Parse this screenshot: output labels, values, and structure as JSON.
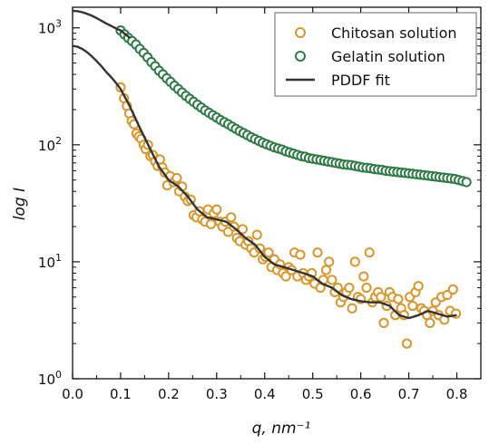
{
  "chart_data": {
    "type": "scatter",
    "xlabel": "q, nm⁻¹",
    "ylabel": "log I",
    "x_scale": "linear",
    "y_scale": "log",
    "xlim": [
      0.0,
      0.85
    ],
    "ylim": [
      1,
      1500
    ],
    "x_ticks": [
      "0.0",
      "0.1",
      "0.2",
      "0.3",
      "0.4",
      "0.5",
      "0.6",
      "0.7",
      "0.8"
    ],
    "y_ticks": [
      "10",
      "10",
      "10",
      "10"
    ],
    "y_tick_exponents": [
      "0",
      "1",
      "2",
      "3"
    ],
    "grid": false,
    "legend_position": "top-right",
    "series": [
      {
        "name": "Chitosan solution",
        "kind": "markers",
        "color": "#d9962b",
        "x": [
          0.1,
          0.107,
          0.113,
          0.118,
          0.123,
          0.128,
          0.133,
          0.138,
          0.143,
          0.148,
          0.152,
          0.157,
          0.162,
          0.167,
          0.172,
          0.177,
          0.182,
          0.187,
          0.192,
          0.197,
          0.203,
          0.21,
          0.217,
          0.222,
          0.228,
          0.234,
          0.24,
          0.246,
          0.252,
          0.258,
          0.264,
          0.27,
          0.276,
          0.282,
          0.288,
          0.294,
          0.3,
          0.306,
          0.312,
          0.318,
          0.324,
          0.33,
          0.336,
          0.342,
          0.348,
          0.354,
          0.36,
          0.366,
          0.372,
          0.378,
          0.384,
          0.39,
          0.396,
          0.402,
          0.408,
          0.414,
          0.42,
          0.426,
          0.432,
          0.438,
          0.444,
          0.45,
          0.456,
          0.462,
          0.468,
          0.474,
          0.48,
          0.486,
          0.492,
          0.498,
          0.504,
          0.51,
          0.516,
          0.522,
          0.528,
          0.534,
          0.54,
          0.546,
          0.552,
          0.558,
          0.564,
          0.57,
          0.576,
          0.582,
          0.588,
          0.594,
          0.6,
          0.606,
          0.612,
          0.618,
          0.624,
          0.63,
          0.636,
          0.642,
          0.648,
          0.654,
          0.66,
          0.666,
          0.672,
          0.678,
          0.684,
          0.69,
          0.696,
          0.702,
          0.708,
          0.714,
          0.72,
          0.726,
          0.732,
          0.738,
          0.744,
          0.75,
          0.756,
          0.762,
          0.768,
          0.774,
          0.78,
          0.786,
          0.792,
          0.798
        ],
        "y": [
          310,
          250,
          215,
          185,
          160,
          150,
          125,
          118,
          112,
          100,
          92,
          100,
          80,
          82,
          72,
          66,
          75,
          64,
          58,
          45,
          54,
          48,
          52,
          40,
          44,
          36,
          33,
          34,
          25,
          24,
          27,
          23,
          22,
          28,
          21,
          26,
          28,
          22,
          20,
          22,
          18,
          24,
          20,
          16,
          15,
          19,
          14,
          15,
          13,
          12,
          17,
          13,
          10.5,
          11,
          12,
          9,
          10.5,
          8.5,
          9.5,
          8,
          7.5,
          9,
          8.5,
          12,
          7.5,
          11.5,
          8,
          7,
          7.5,
          8,
          6.5,
          12,
          6,
          7,
          8.5,
          10,
          7,
          5.5,
          6,
          4.5,
          5,
          5.5,
          6,
          4,
          10,
          5,
          4.8,
          7.5,
          6,
          12,
          4.5,
          5,
          5.5,
          5,
          3,
          4.2,
          5.5,
          5,
          3.5,
          4.8,
          4,
          3.5,
          2,
          5,
          4.2,
          5.5,
          6.2,
          4,
          3.8,
          3.5,
          3,
          3.8,
          4.5,
          3.5,
          5,
          3.2,
          5.2,
          3.8,
          5.8,
          3.6
        ]
      },
      {
        "name": "Gelatin solution",
        "kind": "markers",
        "color": "#2f7a45",
        "x": [
          0.1,
          0.108,
          0.116,
          0.124,
          0.132,
          0.14,
          0.148,
          0.156,
          0.164,
          0.172,
          0.18,
          0.188,
          0.196,
          0.204,
          0.212,
          0.22,
          0.228,
          0.236,
          0.244,
          0.252,
          0.26,
          0.268,
          0.276,
          0.284,
          0.292,
          0.3,
          0.308,
          0.316,
          0.324,
          0.332,
          0.34,
          0.348,
          0.356,
          0.364,
          0.372,
          0.38,
          0.388,
          0.396,
          0.404,
          0.412,
          0.42,
          0.428,
          0.436,
          0.444,
          0.452,
          0.46,
          0.468,
          0.476,
          0.484,
          0.492,
          0.5,
          0.508,
          0.516,
          0.524,
          0.532,
          0.54,
          0.548,
          0.556,
          0.564,
          0.572,
          0.58,
          0.588,
          0.596,
          0.604,
          0.612,
          0.62,
          0.628,
          0.636,
          0.644,
          0.652,
          0.66,
          0.668,
          0.676,
          0.684,
          0.692,
          0.7,
          0.708,
          0.716,
          0.724,
          0.732,
          0.74,
          0.748,
          0.756,
          0.764,
          0.772,
          0.78,
          0.788,
          0.796,
          0.804,
          0.812,
          0.82
        ],
        "y": [
          950,
          880,
          820,
          770,
          720,
          660,
          610,
          560,
          510,
          470,
          430,
          400,
          370,
          345,
          320,
          300,
          280,
          262,
          247,
          233,
          220,
          208,
          197,
          188,
          179,
          171,
          163,
          156,
          150,
          143,
          137,
          131,
          126,
          121,
          116,
          112,
          108,
          104,
          101,
          98,
          95,
          93,
          91,
          88,
          86,
          84,
          82,
          80,
          79,
          77,
          76,
          75,
          74,
          73,
          72,
          71,
          70,
          69,
          68,
          67.5,
          67,
          66,
          65,
          64,
          63.5,
          63,
          62,
          61.5,
          61,
          60,
          59.5,
          59,
          58.5,
          58,
          57.5,
          57,
          56.5,
          56,
          55.5,
          55,
          54.5,
          54,
          53.5,
          53,
          52.5,
          52,
          51.5,
          51,
          50,
          49,
          48
        ]
      },
      {
        "name": "PDDF fit",
        "kind": "line",
        "color": "#333333",
        "segments": [
          {
            "x": [
              0.0,
              0.01,
              0.02,
              0.03,
              0.04,
              0.05,
              0.06,
              0.07,
              0.08,
              0.09,
              0.1,
              0.11,
              0.12
            ],
            "y": [
              1400,
              1390,
              1360,
              1320,
              1270,
              1210,
              1150,
              1090,
              1040,
              990,
              950,
              880,
              820
            ]
          },
          {
            "x": [
              0.0,
              0.01,
              0.02,
              0.03,
              0.04,
              0.05,
              0.06,
              0.07,
              0.08,
              0.09,
              0.1,
              0.12,
              0.14,
              0.16,
              0.18,
              0.2,
              0.22,
              0.24,
              0.26,
              0.28,
              0.3,
              0.32,
              0.34,
              0.36,
              0.38,
              0.4,
              0.42,
              0.44,
              0.46,
              0.48,
              0.5,
              0.52,
              0.54,
              0.56,
              0.58,
              0.6,
              0.62,
              0.64,
              0.66,
              0.68,
              0.7,
              0.72,
              0.74,
              0.76,
              0.78,
              0.8
            ],
            "y": [
              700,
              690,
              660,
              620,
              570,
              520,
              470,
              420,
              380,
              340,
              300,
              210,
              140,
              95,
              65,
              50,
              44,
              36,
              28,
              24,
              23,
              22,
              19,
              16,
              14,
              11,
              9.5,
              9,
              8.5,
              8,
              7.5,
              6.5,
              6,
              5.2,
              4.8,
              4.6,
              4.5,
              4.5,
              4.2,
              3.5,
              3.3,
              3.5,
              3.8,
              3.6,
              3.4,
              3.5
            ]
          }
        ]
      }
    ]
  }
}
